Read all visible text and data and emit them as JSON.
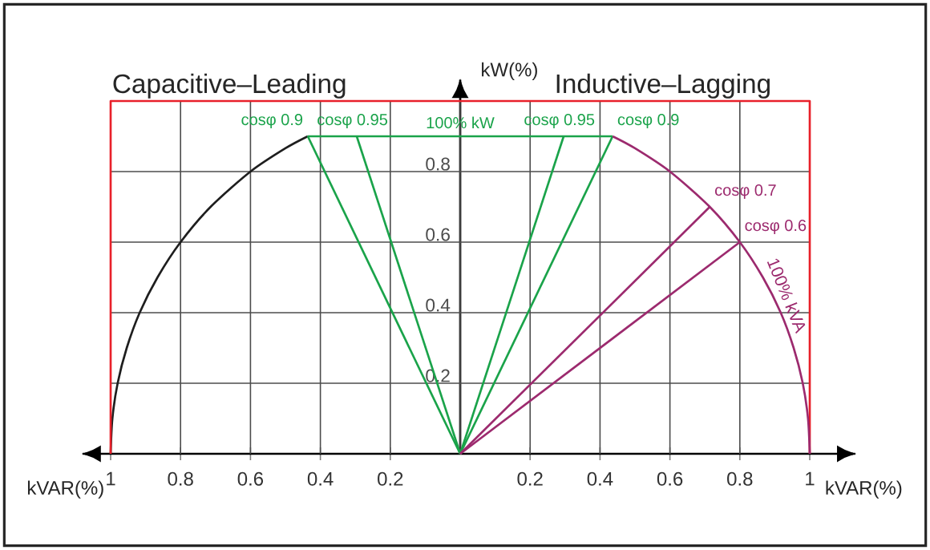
{
  "chart_data": {
    "type": "line",
    "xlabel": "kVAR(%)",
    "ylabel": "kW(%)",
    "xlim": [
      -1.08,
      1.13
    ],
    "ylim": [
      0,
      1.06
    ],
    "xticks": [
      {
        "value": -1,
        "label": "1"
      },
      {
        "value": -0.8,
        "label": "0.8"
      },
      {
        "value": -0.6,
        "label": "0.6"
      },
      {
        "value": -0.4,
        "label": "0.4"
      },
      {
        "value": -0.2,
        "label": "0.2"
      },
      {
        "value": 0,
        "label": null
      },
      0.2,
      0.4,
      0.6,
      0.8,
      1
    ],
    "yticks": [
      0.2,
      0.4,
      0.6,
      0.8,
      {
        "value": 1,
        "label": null
      }
    ],
    "grid": true,
    "annotations": [
      "Capacitive–Leading",
      "Inductive–Lagging",
      "100% kW",
      "100% kVA"
    ],
    "series": [
      {
        "color": "#1e1e1e",
        "x": [
          -1,
          -0.995,
          -0.98,
          -0.954,
          -0.917,
          -0.866,
          -0.8,
          -0.714,
          -0.6,
          -0.5,
          -0.436
        ],
        "values": [
          0,
          0.1,
          0.2,
          0.3,
          0.4,
          0.5,
          0.6,
          0.7,
          0.8,
          0.866,
          0.9
        ]
      },
      {
        "color": "#e8202a",
        "x": [
          -1,
          -1,
          1,
          1
        ],
        "values": [
          0,
          1,
          1,
          0
        ]
      },
      {
        "color": "#1aa34a",
        "x": [
          -0.436,
          0.436
        ],
        "values": [
          0.9,
          0.9
        ]
      },
      {
        "name": "cosφ 0.9",
        "color": "#1aa34a",
        "x": [
          0,
          -0.436
        ],
        "values": [
          0,
          0.9
        ]
      },
      {
        "name": "cosφ 0.95",
        "color": "#1aa34a",
        "x": [
          0,
          -0.296
        ],
        "values": [
          0,
          0.9
        ]
      },
      {
        "name": "cosφ 0.95",
        "color": "#1aa34a",
        "x": [
          0,
          0.296
        ],
        "values": [
          0,
          0.9
        ]
      },
      {
        "name": "cosφ 0.9",
        "color": "#1aa34a",
        "x": [
          0,
          0.436
        ],
        "values": [
          0,
          0.9
        ]
      },
      {
        "color": "#9c2a6e",
        "x": [
          0.436,
          0.5,
          0.6,
          0.714,
          0.8,
          0.866,
          0.917,
          0.954,
          0.98,
          0.995,
          1
        ],
        "values": [
          0.9,
          0.866,
          0.8,
          0.7,
          0.6,
          0.5,
          0.4,
          0.3,
          0.2,
          0.1,
          0
        ]
      },
      {
        "name": "cosφ 0.7",
        "color": "#9c2a6e",
        "x": [
          0,
          0.714
        ],
        "values": [
          0,
          0.7
        ]
      },
      {
        "name": "cosφ 0.6",
        "color": "#9c2a6e",
        "x": [
          0,
          0.8
        ],
        "values": [
          0,
          0.6
        ]
      }
    ]
  }
}
